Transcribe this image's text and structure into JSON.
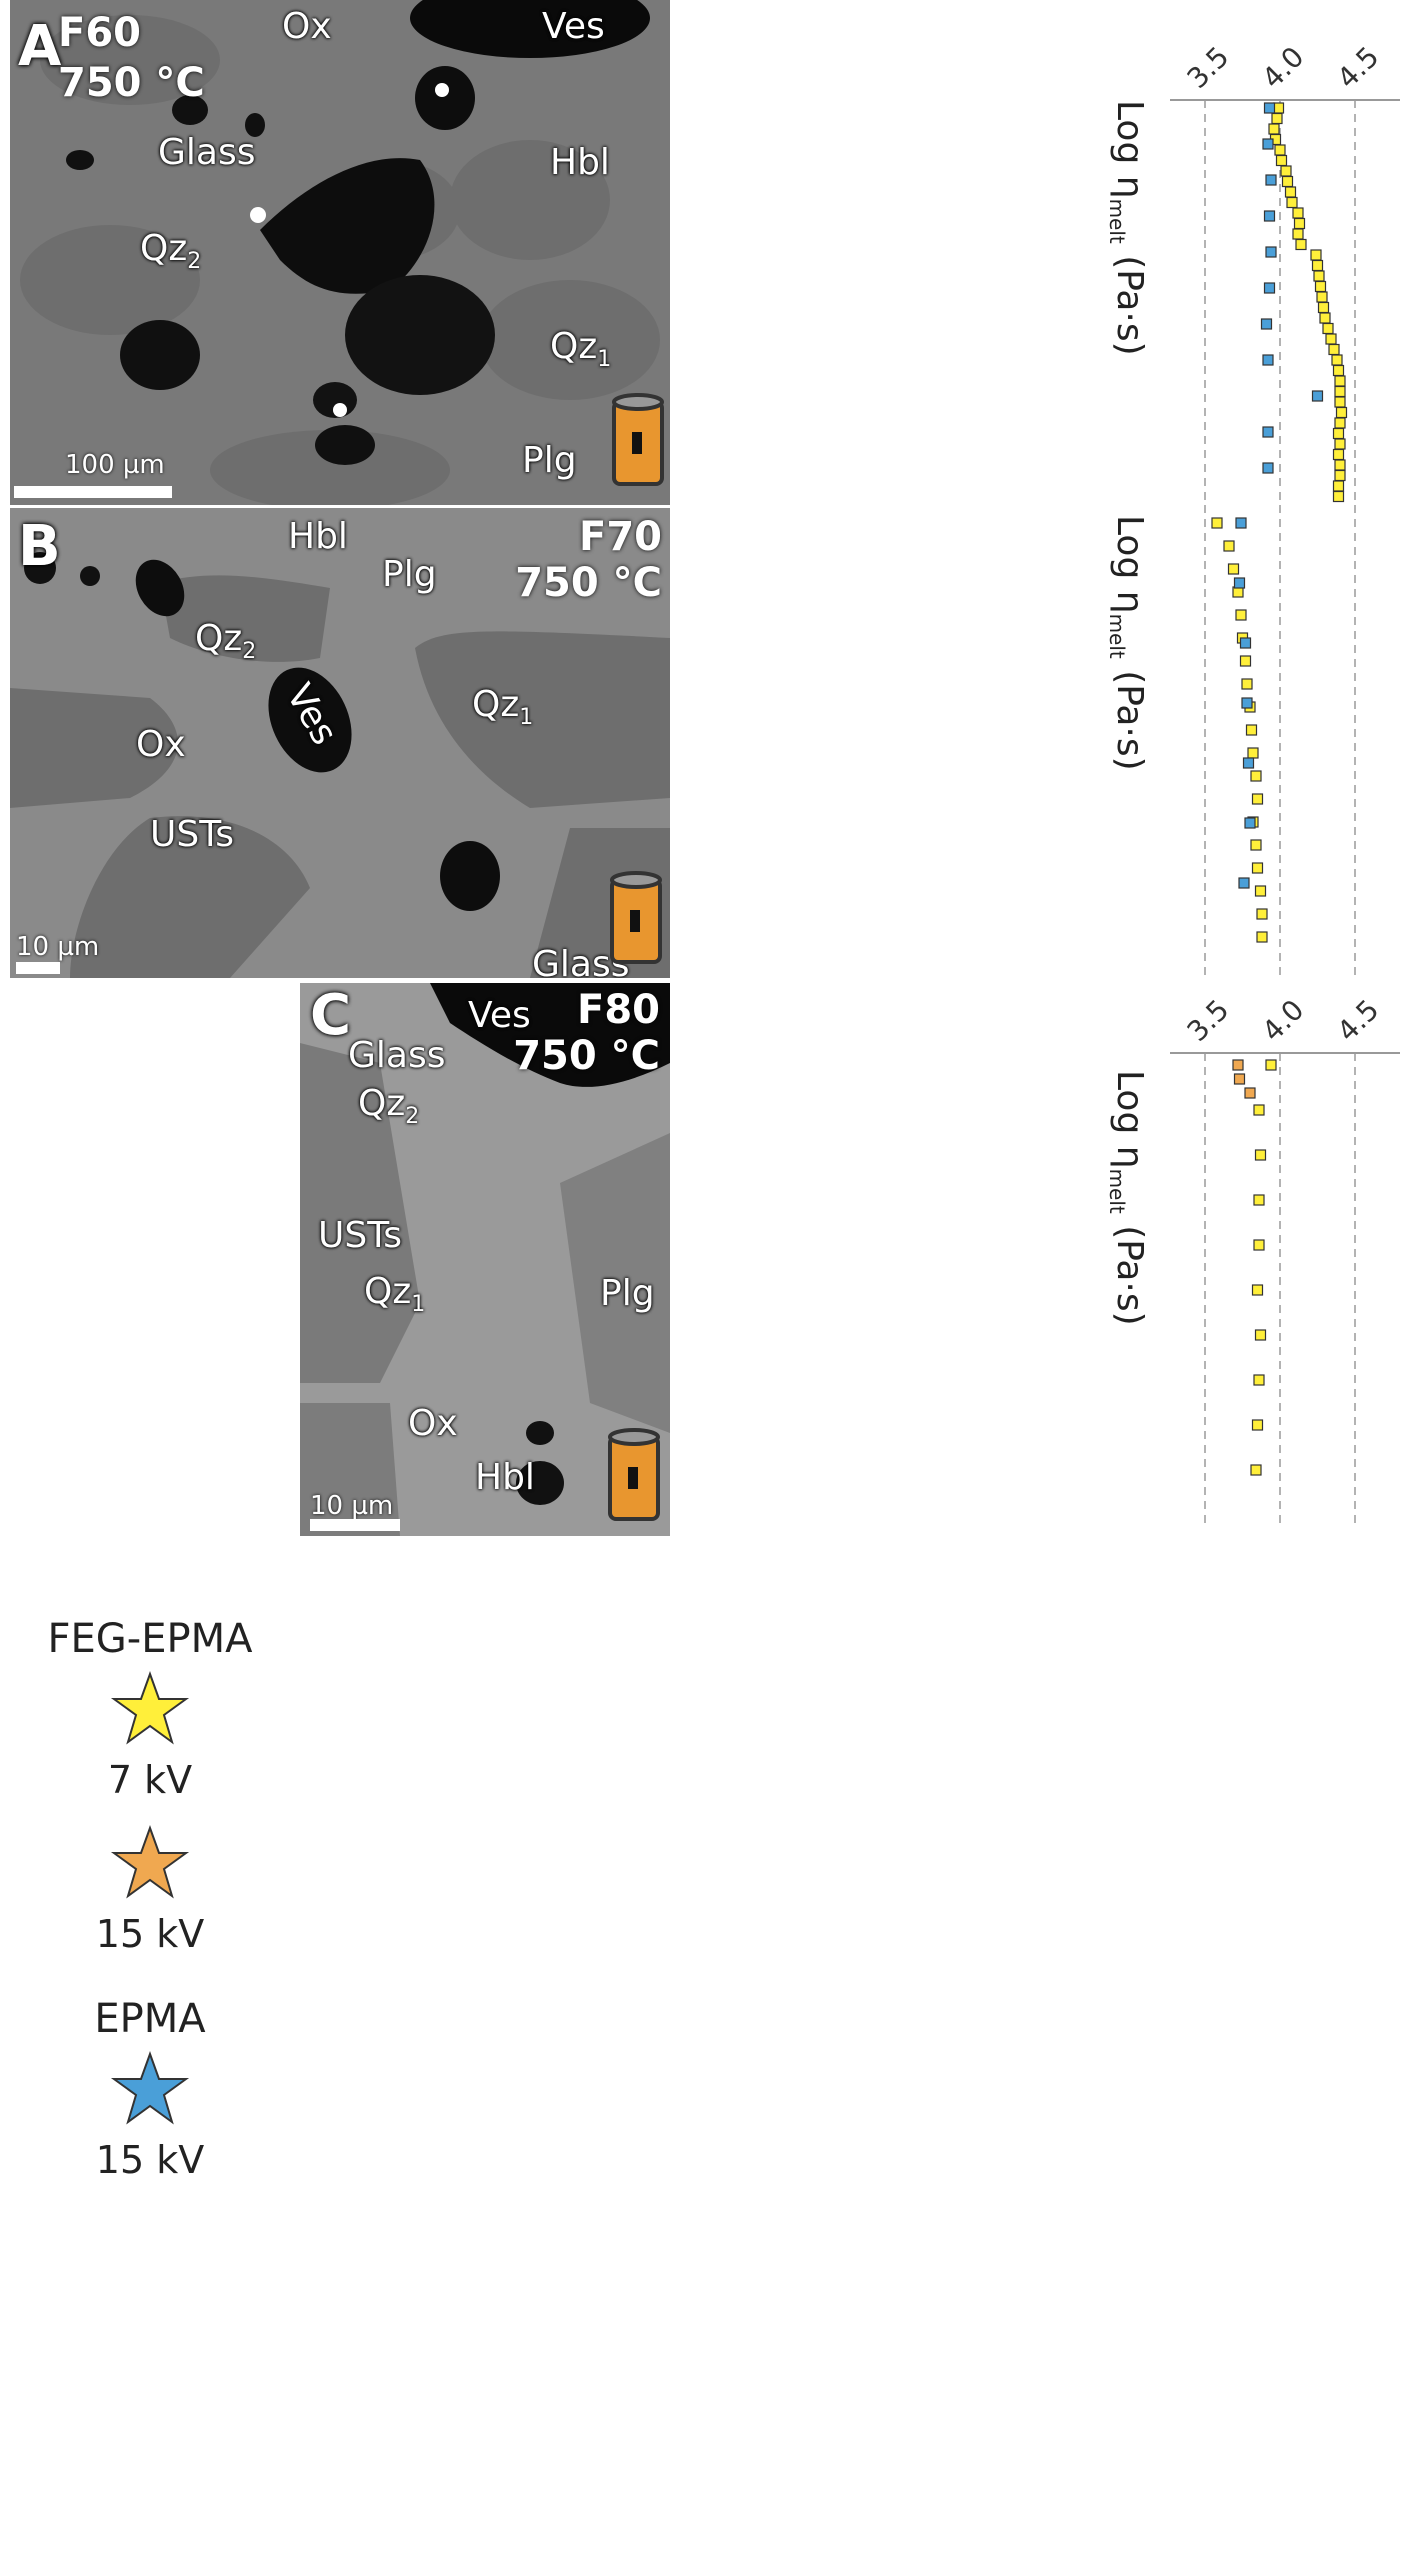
{
  "figure": {
    "panels": [
      {
        "letter": "A",
        "sample": "F60",
        "temperature": "750 °C",
        "labels": {
          "ox": "Ox",
          "ves": "Ves",
          "glass": "Glass",
          "hbl": "Hbl",
          "qz2": "Qz",
          "qz2_sub": "2",
          "qz1": "Qz",
          "qz1_sub": "1",
          "plg": "Plg"
        },
        "scalebar": "100 µm"
      },
      {
        "letter": "B",
        "sample": "F70",
        "temperature": "750 °C",
        "labels": {
          "hbl": "Hbl",
          "plg": "Plg",
          "qz2": "Qz",
          "qz2_sub": "2",
          "ves": "Ves",
          "qz1": "Qz",
          "qz1_sub": "1",
          "ox": "Ox",
          "usts": "USTs",
          "glass": "Glass"
        },
        "scalebar": "10 µm"
      },
      {
        "letter": "C",
        "sample": "F80",
        "temperature": "750 °C",
        "labels": {
          "ves": "Ves",
          "glass": "Glass",
          "qz2": "Qz",
          "qz2_sub": "2",
          "usts": "USTs",
          "qz1": "Qz",
          "qz1_sub": "1",
          "plg": "Plg",
          "ox": "Ox",
          "hbl": "Hbl"
        },
        "scalebar": "10 µm"
      }
    ],
    "legend": {
      "groups": [
        {
          "title": "FEG-EPMA",
          "kv": "7 kV",
          "color": "#ffef3a"
        },
        {
          "title": "",
          "kv": "15 kV",
          "color": "#f0a850"
        },
        {
          "title": "EPMA",
          "kv": "15 kV",
          "color": "#4a9fd8"
        }
      ]
    },
    "colors": {
      "feg_7kv": "#ffef3a",
      "feg_15kv": "#f0a850",
      "epma_15kv": "#4a9fd8",
      "glass_background": "#7a7a7a",
      "vesicle": "#0a0a0a"
    }
  },
  "chart_data": [
    {
      "type": "scatter",
      "panel": "A",
      "ylabel": "Log η",
      "ylabel_sub": "melt",
      "ylabel_unit": "(Pa·s)",
      "ticks": [
        "3.5",
        "4.0",
        "4.5"
      ],
      "xlim": [
        3.5,
        4.5
      ],
      "series": [
        {
          "key": "feg7",
          "color": "#ffef3a",
          "values": [
            3.99,
            3.98,
            3.96,
            3.97,
            4.0,
            4.01,
            4.04,
            4.05,
            4.07,
            4.08,
            4.12,
            4.13,
            4.12,
            4.14,
            4.24,
            4.25,
            4.26,
            4.27,
            4.28,
            4.29,
            4.3,
            4.32,
            4.34,
            4.36,
            4.38,
            4.39,
            4.4,
            4.4,
            4.4,
            4.41,
            4.4,
            4.39,
            4.4,
            4.39,
            4.4,
            4.4,
            4.39,
            4.39
          ]
        },
        {
          "key": "epma15",
          "color": "#4a9fd8",
          "values": [
            3.93,
            3.92,
            3.94,
            3.93,
            3.94,
            3.93,
            3.91,
            3.92,
            4.25,
            3.92,
            3.92
          ]
        }
      ]
    },
    {
      "type": "scatter",
      "panel": "B",
      "ylabel": "Log η",
      "ylabel_sub": "melt",
      "ylabel_unit": "(Pa·s)",
      "ticks": [
        "3.5",
        "4.0",
        "4.5"
      ],
      "xlim": [
        3.5,
        4.5
      ],
      "series": [
        {
          "key": "feg7",
          "color": "#ffef3a",
          "values": [
            3.58,
            3.66,
            3.69,
            3.72,
            3.74,
            3.75,
            3.77,
            3.78,
            3.8,
            3.81,
            3.82,
            3.84,
            3.85,
            3.82,
            3.84,
            3.85,
            3.87,
            3.88,
            3.88
          ]
        },
        {
          "key": "epma15",
          "color": "#4a9fd8",
          "values": [
            3.74,
            3.73,
            3.77,
            3.78,
            3.79,
            3.8,
            3.76
          ]
        }
      ]
    },
    {
      "type": "scatter",
      "panel": "C",
      "ylabel": "Log η",
      "ylabel_sub": "melt",
      "ylabel_unit": "(Pa·s)",
      "ticks": [
        "3.5",
        "4.0",
        "4.5"
      ],
      "xlim": [
        3.5,
        4.5
      ],
      "series": [
        {
          "key": "feg7",
          "color": "#ffef3a",
          "values": [
            3.94,
            3.86,
            3.87,
            3.86,
            3.86,
            3.85,
            3.87,
            3.86,
            3.85,
            3.84
          ]
        },
        {
          "key": "feg15",
          "color": "#f0a850",
          "values": [
            3.72,
            3.73,
            3.8
          ]
        }
      ]
    }
  ]
}
